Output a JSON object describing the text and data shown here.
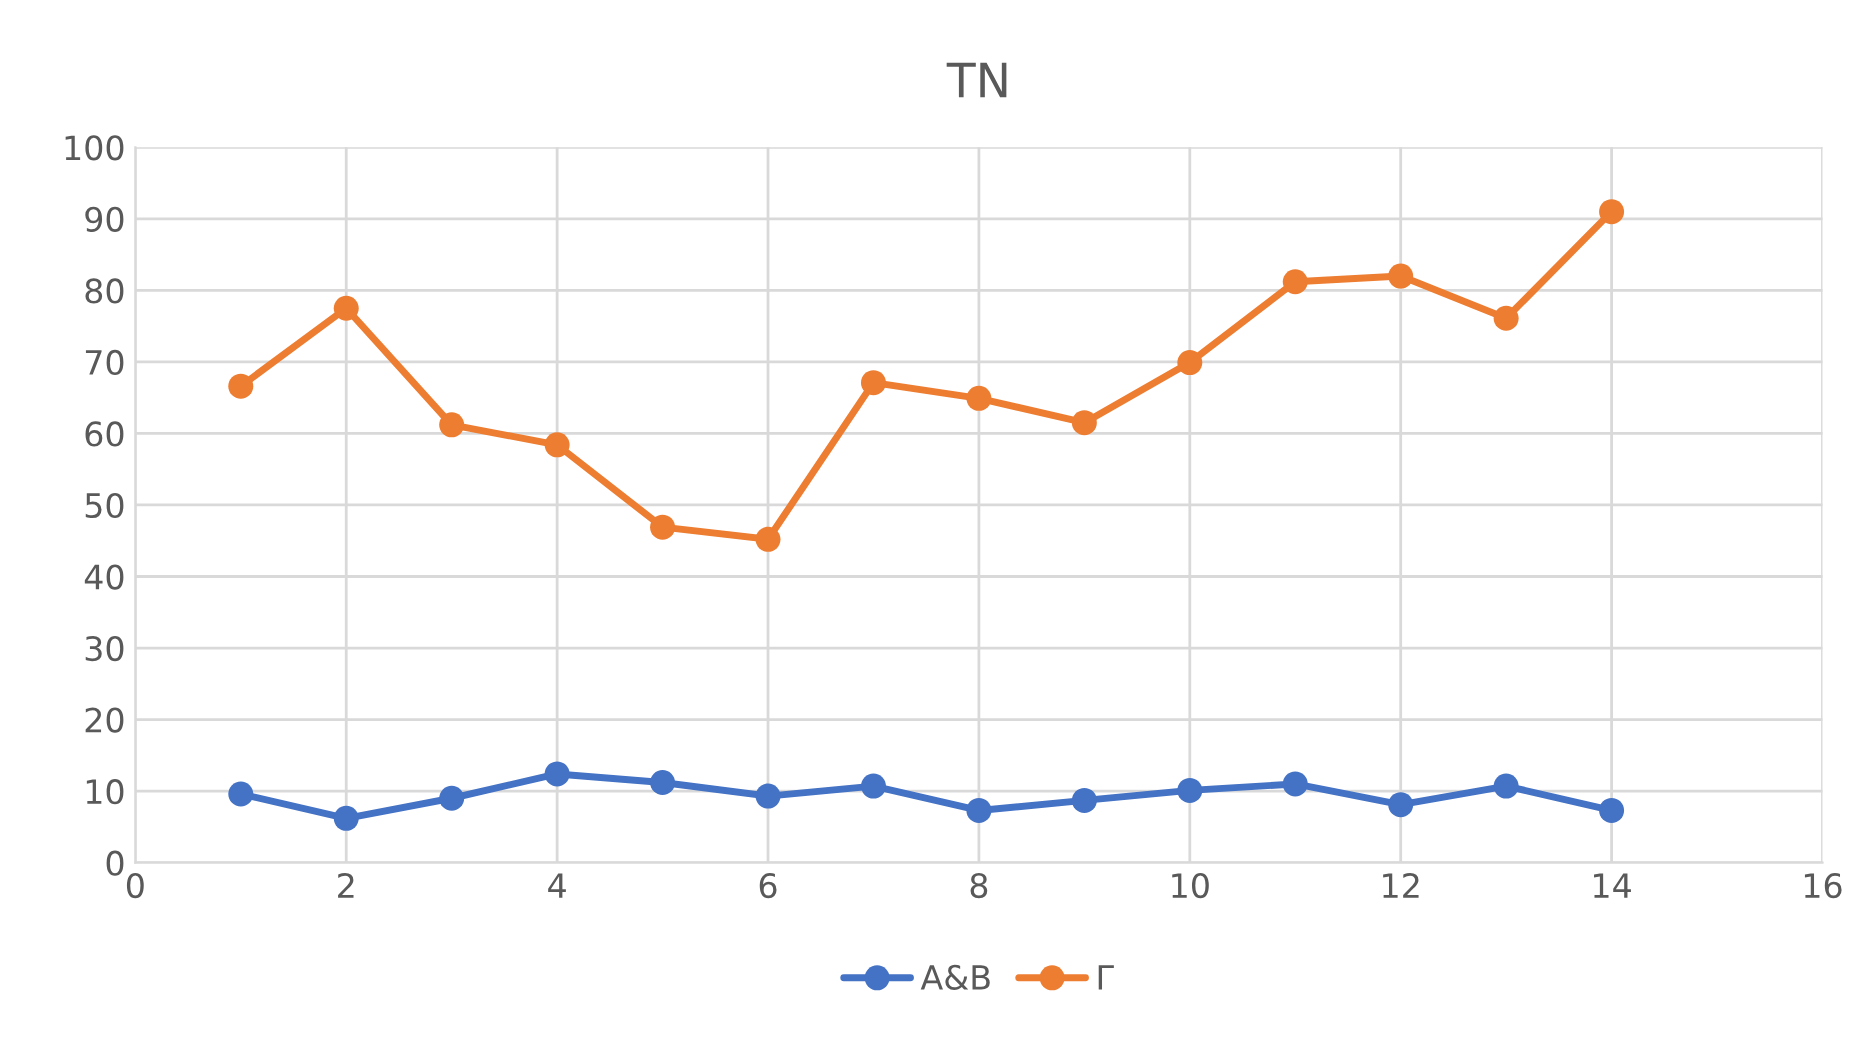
{
  "chart_data": {
    "type": "line",
    "title": "TN",
    "x": [
      1,
      2,
      3,
      4,
      5,
      6,
      7,
      8,
      9,
      10,
      11,
      12,
      13,
      14
    ],
    "series": [
      {
        "name": "A&B",
        "color": "#4472c4",
        "values": [
          9.6,
          6.2,
          9.0,
          12.4,
          11.2,
          9.3,
          10.7,
          7.3,
          8.7,
          10.1,
          11.0,
          8.1,
          10.7,
          7.3
        ]
      },
      {
        "name": "Γ",
        "color": "#ed7d31",
        "values": [
          66.6,
          77.5,
          61.2,
          58.4,
          46.9,
          45.2,
          67.1,
          64.9,
          61.5,
          69.9,
          81.2,
          82.0,
          76.1,
          91.0
        ]
      }
    ],
    "xlim": [
      0,
      16
    ],
    "xticks": [
      0,
      2,
      4,
      6,
      8,
      10,
      12,
      14,
      16
    ],
    "ylim": [
      0,
      100
    ],
    "yticks": [
      0,
      10,
      20,
      30,
      40,
      50,
      60,
      70,
      80,
      90,
      100
    ],
    "grid": true,
    "legend": "bottom",
    "marker": "circle",
    "line_style": "solid"
  }
}
